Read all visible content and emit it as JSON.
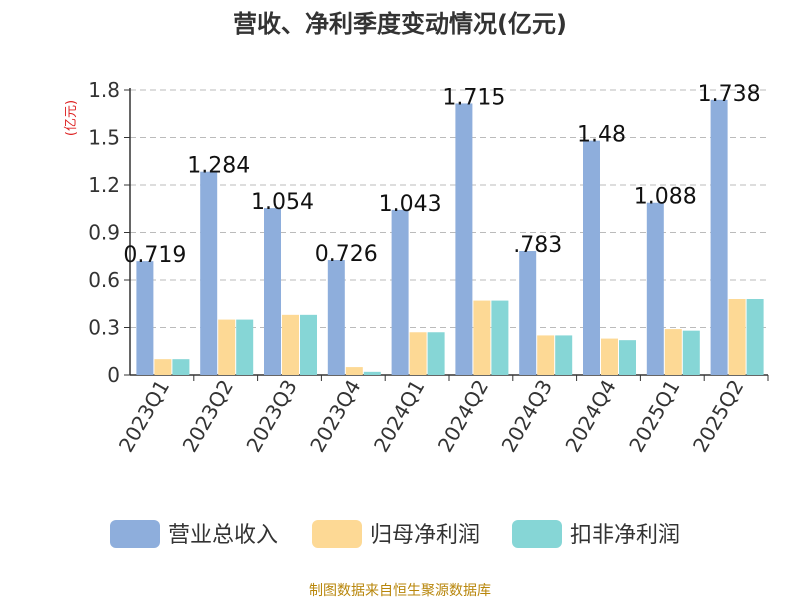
{
  "title": "营收、净利季度变动情况(亿元)",
  "source": "制图数据来自恒生聚源数据库",
  "colors": {
    "revenue": "#8eaedc",
    "parent_profit": "#fdd995",
    "deducted_profit": "#86d6d6",
    "unit_label": "#dd2222",
    "title": "#333333",
    "source": "#b8860b"
  },
  "chart_data": {
    "type": "bar",
    "title": "营收、净利季度变动情况(亿元)",
    "ylabel": "(亿元)",
    "xlabel": "",
    "ylim": [
      0,
      1.8
    ],
    "yticks": [
      "0",
      "0.3",
      "0.6",
      "0.9",
      "1.2",
      "1.5",
      "1.8"
    ],
    "grid": true,
    "legend": "bottom",
    "categories": [
      "2023Q1",
      "2023Q2",
      "2023Q3",
      "2023Q4",
      "2024Q1",
      "2024Q2",
      "2024Q3",
      "2024Q4",
      "2025Q1",
      "2025Q2"
    ],
    "series": [
      {
        "name": "营业总收入",
        "values": [
          0.719,
          1.284,
          1.054,
          0.726,
          1.043,
          1.715,
          0.783,
          1.48,
          1.088,
          1.738
        ],
        "labels": [
          "0.719",
          "1.284",
          "1.054",
          "0.726",
          "1.043",
          "1.715",
          ".783",
          "1.48",
          "1.088",
          "1.738"
        ]
      },
      {
        "name": "归母净利润",
        "values": [
          0.1,
          0.35,
          0.38,
          0.05,
          0.27,
          0.47,
          0.25,
          0.23,
          0.29,
          0.48
        ]
      },
      {
        "name": "扣非净利润",
        "values": [
          0.1,
          0.35,
          0.38,
          0.02,
          0.27,
          0.47,
          0.25,
          0.22,
          0.28,
          0.48
        ]
      }
    ]
  }
}
